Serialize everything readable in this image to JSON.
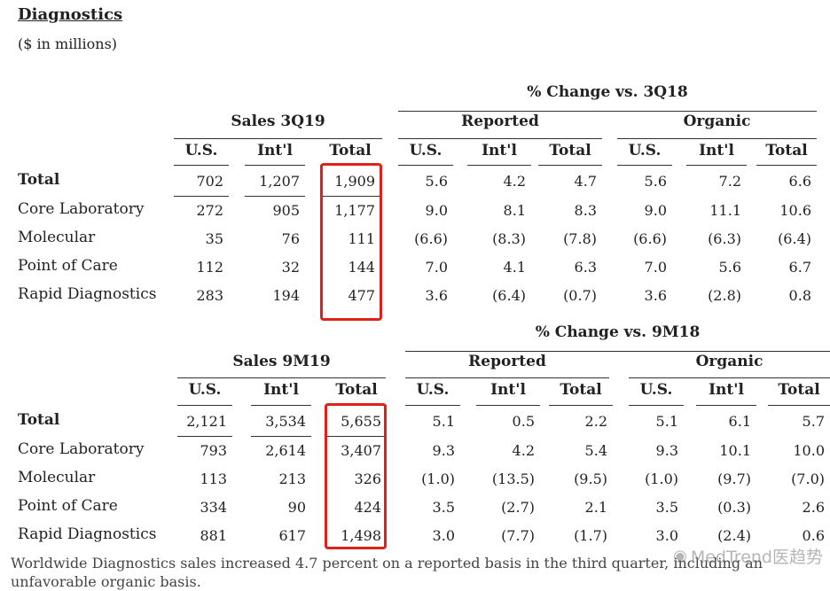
{
  "heading": "Diagnostics",
  "units": "($ in millions)",
  "columns": {
    "us": "U.S.",
    "intl": "Int'l",
    "total": "Total",
    "reported": "Reported",
    "organic": "Organic"
  },
  "sections": [
    {
      "sales_title": "Sales 3Q19",
      "change_title": "% Change vs. 3Q18",
      "rows": [
        {
          "label": "Total",
          "bold": true,
          "values": [
            "702",
            "1,207",
            "1,909",
            "5.6",
            "4.2",
            "4.7",
            "5.6",
            "7.2",
            "6.6"
          ]
        },
        {
          "label": "Core Laboratory",
          "bold": false,
          "values": [
            "272",
            "905",
            "1,177",
            "9.0",
            "8.1",
            "8.3",
            "9.0",
            "11.1",
            "10.6"
          ]
        },
        {
          "label": "Molecular",
          "bold": false,
          "values": [
            "35",
            "76",
            "111",
            "(6.6)",
            "(8.3)",
            "(7.8)",
            "(6.6)",
            "(6.3)",
            "(6.4)"
          ]
        },
        {
          "label": "Point of Care",
          "bold": false,
          "values": [
            "112",
            "32",
            "144",
            "7.0",
            "4.1",
            "6.3",
            "7.0",
            "5.6",
            "6.7"
          ]
        },
        {
          "label": "Rapid Diagnostics",
          "bold": false,
          "values": [
            "283",
            "194",
            "477",
            "3.6",
            "(6.4)",
            "(0.7)",
            "3.6",
            "(2.8)",
            "0.8"
          ]
        }
      ]
    },
    {
      "sales_title": "Sales 9M19",
      "change_title": "% Change vs. 9M18",
      "rows": [
        {
          "label": "Total",
          "bold": true,
          "values": [
            "2,121",
            "3,534",
            "5,655",
            "5.1",
            "0.5",
            "2.2",
            "5.1",
            "6.1",
            "5.7"
          ]
        },
        {
          "label": "Core Laboratory",
          "bold": false,
          "values": [
            "793",
            "2,614",
            "3,407",
            "9.3",
            "4.2",
            "5.4",
            "9.3",
            "10.1",
            "10.0"
          ]
        },
        {
          "label": "Molecular",
          "bold": false,
          "values": [
            "113",
            "213",
            "326",
            "(1.0)",
            "(13.5)",
            "(9.5)",
            "(1.0)",
            "(9.7)",
            "(7.0)"
          ]
        },
        {
          "label": "Point of Care",
          "bold": false,
          "values": [
            "334",
            "90",
            "424",
            "3.5",
            "(2.7)",
            "2.1",
            "3.5",
            "(0.3)",
            "2.6"
          ]
        },
        {
          "label": "Rapid Diagnostics",
          "bold": false,
          "values": [
            "881",
            "617",
            "1,498",
            "3.0",
            "(7.7)",
            "(1.7)",
            "3.0",
            "(2.4)",
            "0.6"
          ]
        }
      ]
    }
  ],
  "footer": "Worldwide Diagnostics sales increased 4.7 percent on a reported basis in the third quarter, including an unfavorable organic basis.",
  "watermark": {
    "icon": "wechat-icon",
    "text": "MedTrend医趋势"
  },
  "colors": {
    "highlight": "#e0201b"
  }
}
